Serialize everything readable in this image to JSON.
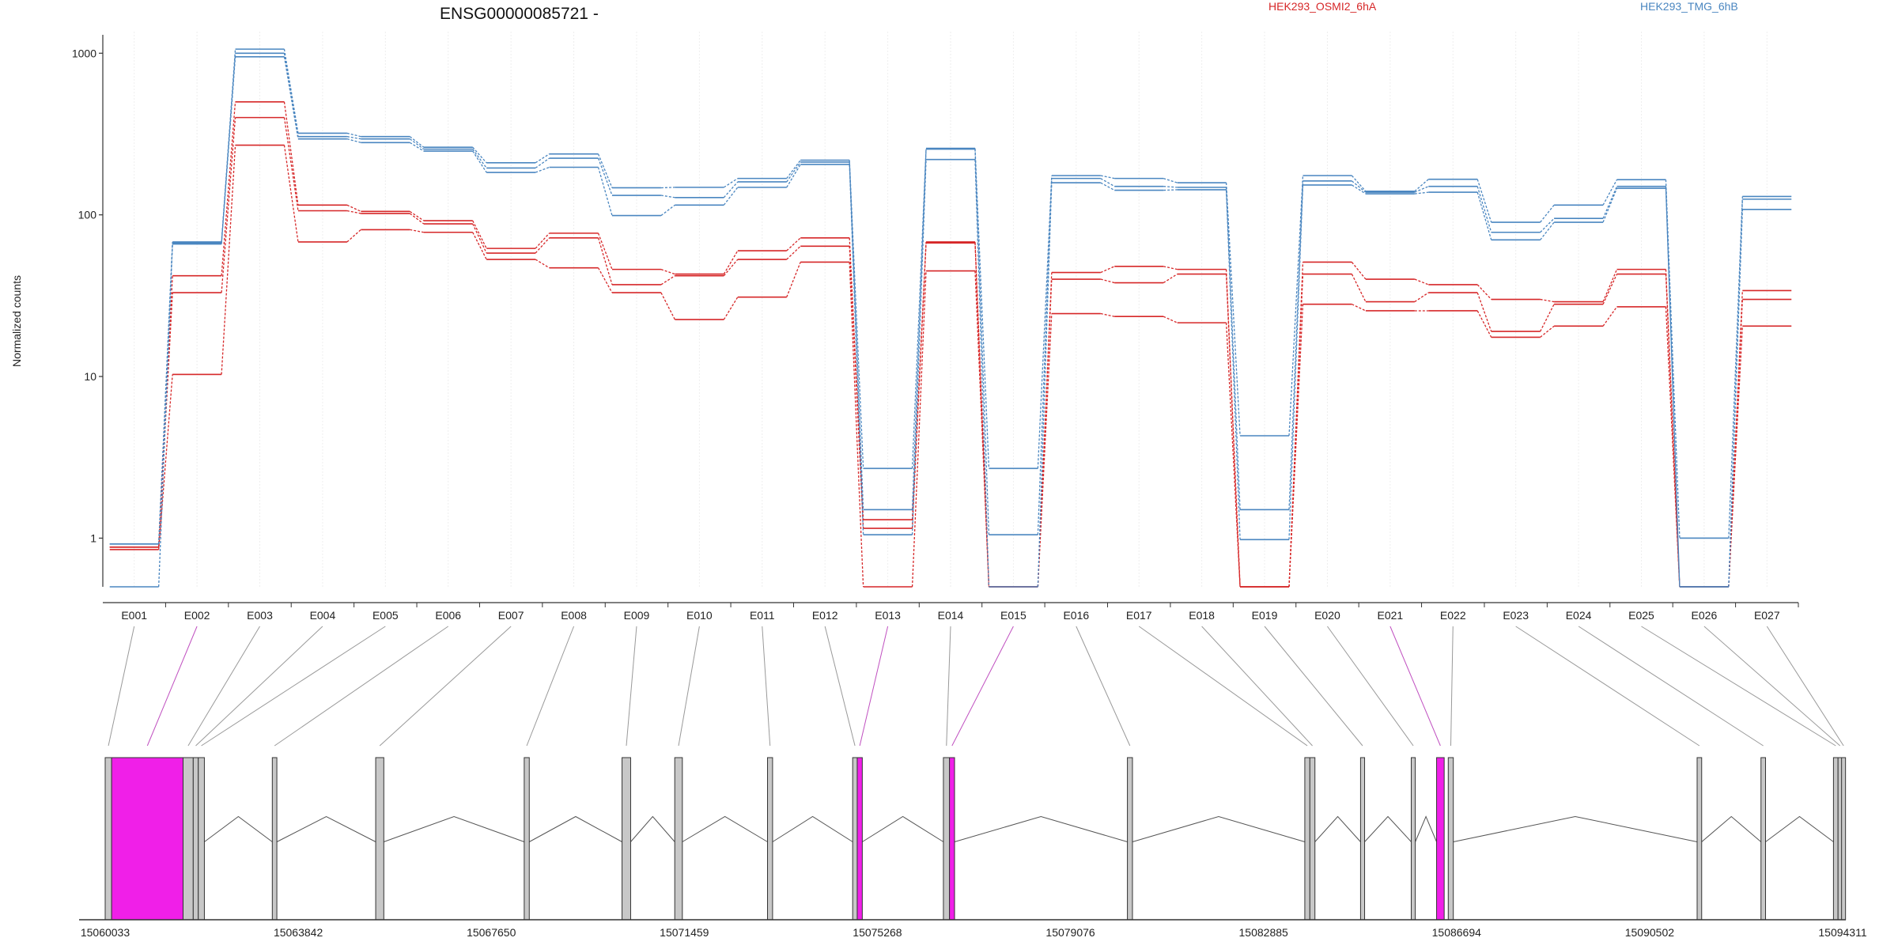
{
  "chart_data": {
    "type": "line",
    "title": "ENSG00000085721 -",
    "ylabel": "Normalized counts",
    "yscale": "log",
    "ylim": [
      0.5,
      1300
    ],
    "yticks": [
      1,
      10,
      100,
      1000
    ],
    "ytick_labels": [
      "1",
      "10",
      "100",
      "1000"
    ],
    "grid": "vertical",
    "legend_placement": "top-right",
    "categories": [
      "E001",
      "E002",
      "E003",
      "E004",
      "E005",
      "E006",
      "E007",
      "E008",
      "E009",
      "E010",
      "E011",
      "E012",
      "E013",
      "E014",
      "E015",
      "E016",
      "E017",
      "E018",
      "E019",
      "E020",
      "E021",
      "E022",
      "E023",
      "E024",
      "E025",
      "E026",
      "E027"
    ],
    "groups": [
      {
        "name": "HEK293_OSMI2_6hA",
        "color": "#d62728"
      },
      {
        "name": "HEK293_TMG_6hB",
        "color": "#4a86c0"
      }
    ],
    "series": [
      {
        "group": 0,
        "values": [
          0.88,
          42,
          500,
          115,
          105,
          92,
          62,
          77,
          46,
          43,
          60,
          72,
          1.3,
          68,
          0.5,
          44,
          48,
          46,
          0.5,
          51,
          40,
          37,
          30,
          29,
          46,
          0.5,
          34
        ]
      },
      {
        "group": 0,
        "values": [
          0.88,
          33,
          400,
          106,
          102,
          88,
          58,
          72,
          37,
          42,
          53,
          64,
          1.15,
          67,
          0.5,
          40,
          38,
          43,
          0.5,
          43,
          29,
          33,
          19,
          28,
          43,
          0.5,
          30
        ]
      },
      {
        "group": 0,
        "values": [
          0.85,
          10.3,
          270,
          68,
          81,
          78,
          53,
          47,
          33,
          22.5,
          31,
          51,
          0.5,
          45,
          0.5,
          24.5,
          23.5,
          21.5,
          0.5,
          28,
          25.5,
          25.5,
          17.5,
          20.5,
          27,
          0.5,
          20.5
        ]
      },
      {
        "group": 1,
        "values": [
          0.92,
          68,
          1060,
          320,
          305,
          262,
          210,
          238,
          147,
          148,
          168,
          218,
          2.7,
          258,
          2.7,
          175,
          168,
          158,
          4.3,
          175,
          140,
          166,
          90,
          115,
          165,
          1.0,
          130
        ]
      },
      {
        "group": 1,
        "values": [
          0.92,
          67,
          1000,
          305,
          295,
          255,
          195,
          224,
          132,
          128,
          160,
          212,
          1.5,
          255,
          1.05,
          168,
          150,
          148,
          1.5,
          162,
          138,
          150,
          78,
          95,
          150,
          0.5,
          125
        ]
      },
      {
        "group": 1,
        "values": [
          0.5,
          66,
          950,
          295,
          280,
          248,
          183,
          197,
          99,
          115,
          148,
          205,
          1.05,
          220,
          0.5,
          158,
          142,
          143,
          0.98,
          153,
          135,
          138,
          70,
          90,
          146,
          0.5,
          108
        ]
      }
    ],
    "genomic_ticks": [
      "15060033",
      "15063842",
      "15067650",
      "15071459",
      "15075268",
      "15079076",
      "15082885",
      "15086694",
      "15090502",
      "15094311"
    ],
    "gene_model": {
      "start": 15060033,
      "end": 15094311,
      "exons": [
        {
          "id": "E001",
          "start": 15060033,
          "end": 15060160,
          "highlight": false
        },
        {
          "id": "E002",
          "start": 15060160,
          "end": 15061570,
          "highlight": true
        },
        {
          "id": "E003",
          "start": 15061570,
          "end": 15061770,
          "highlight": false
        },
        {
          "id": "E004",
          "start": 15061770,
          "end": 15061870,
          "highlight": false
        },
        {
          "id": "E005",
          "start": 15061870,
          "end": 15061990,
          "highlight": false
        },
        {
          "id": "E006",
          "start": 15063330,
          "end": 15063420,
          "highlight": false
        },
        {
          "id": "E007",
          "start": 15065370,
          "end": 15065530,
          "highlight": false
        },
        {
          "id": "E008",
          "start": 15068300,
          "end": 15068400,
          "highlight": false
        },
        {
          "id": "E009",
          "start": 15070230,
          "end": 15070400,
          "highlight": false
        },
        {
          "id": "E010",
          "start": 15071270,
          "end": 15071420,
          "highlight": false
        },
        {
          "id": "E011",
          "start": 15073100,
          "end": 15073200,
          "highlight": false
        },
        {
          "id": "E012",
          "start": 15074780,
          "end": 15074870,
          "highlight": false
        },
        {
          "id": "E013",
          "start": 15074870,
          "end": 15074970,
          "highlight": true
        },
        {
          "id": "E014",
          "start": 15076570,
          "end": 15076690,
          "highlight": false
        },
        {
          "id": "E015",
          "start": 15076690,
          "end": 15076790,
          "highlight": true
        },
        {
          "id": "E016",
          "start": 15080200,
          "end": 15080300,
          "highlight": false
        },
        {
          "id": "E017",
          "start": 15083700,
          "end": 15083800,
          "highlight": false
        },
        {
          "id": "E018",
          "start": 15083800,
          "end": 15083900,
          "highlight": false
        },
        {
          "id": "E019",
          "start": 15084800,
          "end": 15084880,
          "highlight": false
        },
        {
          "id": "E020",
          "start": 15085800,
          "end": 15085880,
          "highlight": false
        },
        {
          "id": "E021",
          "start": 15086300,
          "end": 15086450,
          "highlight": true
        },
        {
          "id": "E022",
          "start": 15086530,
          "end": 15086630,
          "highlight": false
        },
        {
          "id": "E023",
          "start": 15091440,
          "end": 15091530,
          "highlight": false
        },
        {
          "id": "E024",
          "start": 15092700,
          "end": 15092790,
          "highlight": false
        },
        {
          "id": "E025",
          "start": 15094130,
          "end": 15094220,
          "highlight": false
        },
        {
          "id": "E026",
          "start": 15094220,
          "end": 15094290,
          "highlight": false
        },
        {
          "id": "E027",
          "start": 15094290,
          "end": 15094311,
          "highlight": false
        }
      ]
    }
  },
  "colors": {
    "highlight_exon": "#f01fe8",
    "exon": "#c8c8c8",
    "connector": "#999999",
    "connector_highlight": "#c050c0",
    "intron": "#555555"
  }
}
